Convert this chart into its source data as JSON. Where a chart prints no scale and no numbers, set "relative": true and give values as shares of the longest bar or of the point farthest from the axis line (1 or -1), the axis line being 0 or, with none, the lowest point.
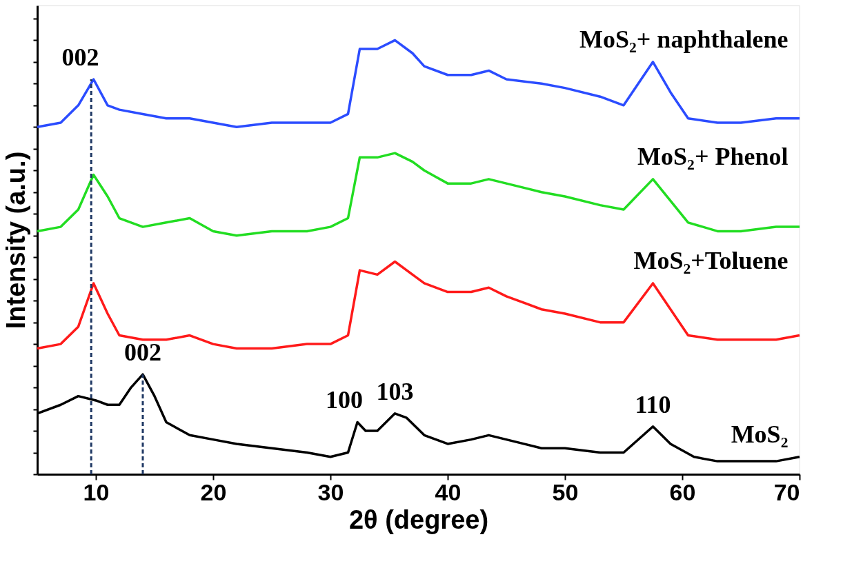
{
  "chart_data": {
    "type": "line",
    "xlabel": "2θ (degree)",
    "ylabel": "Intensity (a.u.)",
    "relative": true,
    "tick_labels": "x",
    "grid": false,
    "legend": false,
    "marker": "none",
    "line_style": "solid",
    "x": [
      5,
      7,
      8.5,
      9.8,
      11,
      12,
      14,
      16,
      18,
      20,
      22,
      25,
      28,
      30,
      31.5,
      32.5,
      34,
      35.5,
      37,
      38,
      40,
      42,
      43.5,
      45,
      48,
      50,
      53,
      55,
      57.5,
      59,
      60.5,
      63,
      65,
      68,
      70
    ],
    "xlim": [
      5,
      70
    ],
    "xticks": [
      10,
      20,
      30,
      40,
      50,
      60,
      70
    ],
    "series": [
      {
        "name": "MoS₂+ naphthalene",
        "color": "#2b4cff",
        "values": [
          0.8,
          0.81,
          0.85,
          0.91,
          0.85,
          0.84,
          0.83,
          0.82,
          0.82,
          0.81,
          0.8,
          0.81,
          0.81,
          0.81,
          0.83,
          0.98,
          0.98,
          1.0,
          0.97,
          0.94,
          0.92,
          0.92,
          0.93,
          0.91,
          0.9,
          0.89,
          0.87,
          0.85,
          0.95,
          0.88,
          0.82,
          0.81,
          0.81,
          0.82,
          0.82
        ]
      },
      {
        "name": "MoS₂+ Phenol",
        "color": "#22dd22",
        "values": [
          0.56,
          0.57,
          0.61,
          0.69,
          0.64,
          0.59,
          0.57,
          0.58,
          0.59,
          0.56,
          0.55,
          0.56,
          0.56,
          0.57,
          0.59,
          0.73,
          0.73,
          0.74,
          0.72,
          0.7,
          0.67,
          0.67,
          0.68,
          0.67,
          0.65,
          0.64,
          0.62,
          0.61,
          0.68,
          0.63,
          0.58,
          0.56,
          0.56,
          0.57,
          0.57
        ]
      },
      {
        "name": "MoS₂+Toluene",
        "color": "#ff1a1a",
        "values": [
          0.29,
          0.3,
          0.34,
          0.44,
          0.37,
          0.32,
          0.31,
          0.31,
          0.32,
          0.3,
          0.29,
          0.29,
          0.3,
          0.3,
          0.32,
          0.47,
          0.46,
          0.49,
          0.46,
          0.44,
          0.42,
          0.42,
          0.43,
          0.41,
          0.38,
          0.37,
          0.35,
          0.35,
          0.44,
          0.38,
          0.32,
          0.31,
          0.31,
          0.31,
          0.32
        ]
      },
      {
        "name": "MoS₂",
        "color": "#000000",
        "x": [
          5,
          7,
          8.5,
          10,
          11,
          12,
          13,
          14,
          15,
          16,
          18,
          20,
          22,
          25,
          28,
          30,
          31.5,
          32.3,
          33,
          34,
          35.5,
          36.5,
          38,
          40,
          42,
          43.5,
          45,
          48,
          50,
          53,
          55,
          57.5,
          59,
          61,
          63,
          66,
          68,
          70
        ],
        "values": [
          0.14,
          0.16,
          0.18,
          0.17,
          0.16,
          0.16,
          0.2,
          0.23,
          0.18,
          0.12,
          0.09,
          0.08,
          0.07,
          0.06,
          0.05,
          0.04,
          0.05,
          0.12,
          0.1,
          0.1,
          0.14,
          0.13,
          0.09,
          0.07,
          0.08,
          0.09,
          0.08,
          0.06,
          0.06,
          0.05,
          0.05,
          0.11,
          0.07,
          0.04,
          0.03,
          0.03,
          0.03,
          0.04
        ]
      }
    ],
    "annotations": [
      {
        "text": "002",
        "x": 9.8,
        "y": 0.91
      },
      {
        "text": "002",
        "x": 14,
        "y": 0.23
      },
      {
        "text": "100",
        "x": 32.3,
        "y": 0.12
      },
      {
        "text": "103",
        "x": 35.5,
        "y": 0.14
      },
      {
        "text": "110",
        "x": 57.5,
        "y": 0.11
      }
    ],
    "ref_lines": [
      {
        "axis": "x",
        "value": 9.6,
        "color": "#1f3864",
        "line_style": "dashed"
      },
      {
        "axis": "x",
        "value": 14,
        "color": "#1f3864",
        "line_style": "dashed"
      }
    ]
  }
}
